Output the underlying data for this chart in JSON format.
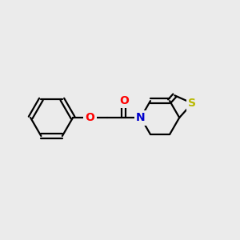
{
  "background_color": "#ebebeb",
  "bond_color": "#000000",
  "atom_colors": {
    "O_carbonyl": "#ff0000",
    "O_ether": "#ff0000",
    "N": "#0000cd",
    "S": "#b8b800"
  },
  "figsize": [
    3.0,
    3.0
  ],
  "dpi": 100,
  "bond_lw": 1.6,
  "fontsize": 10
}
